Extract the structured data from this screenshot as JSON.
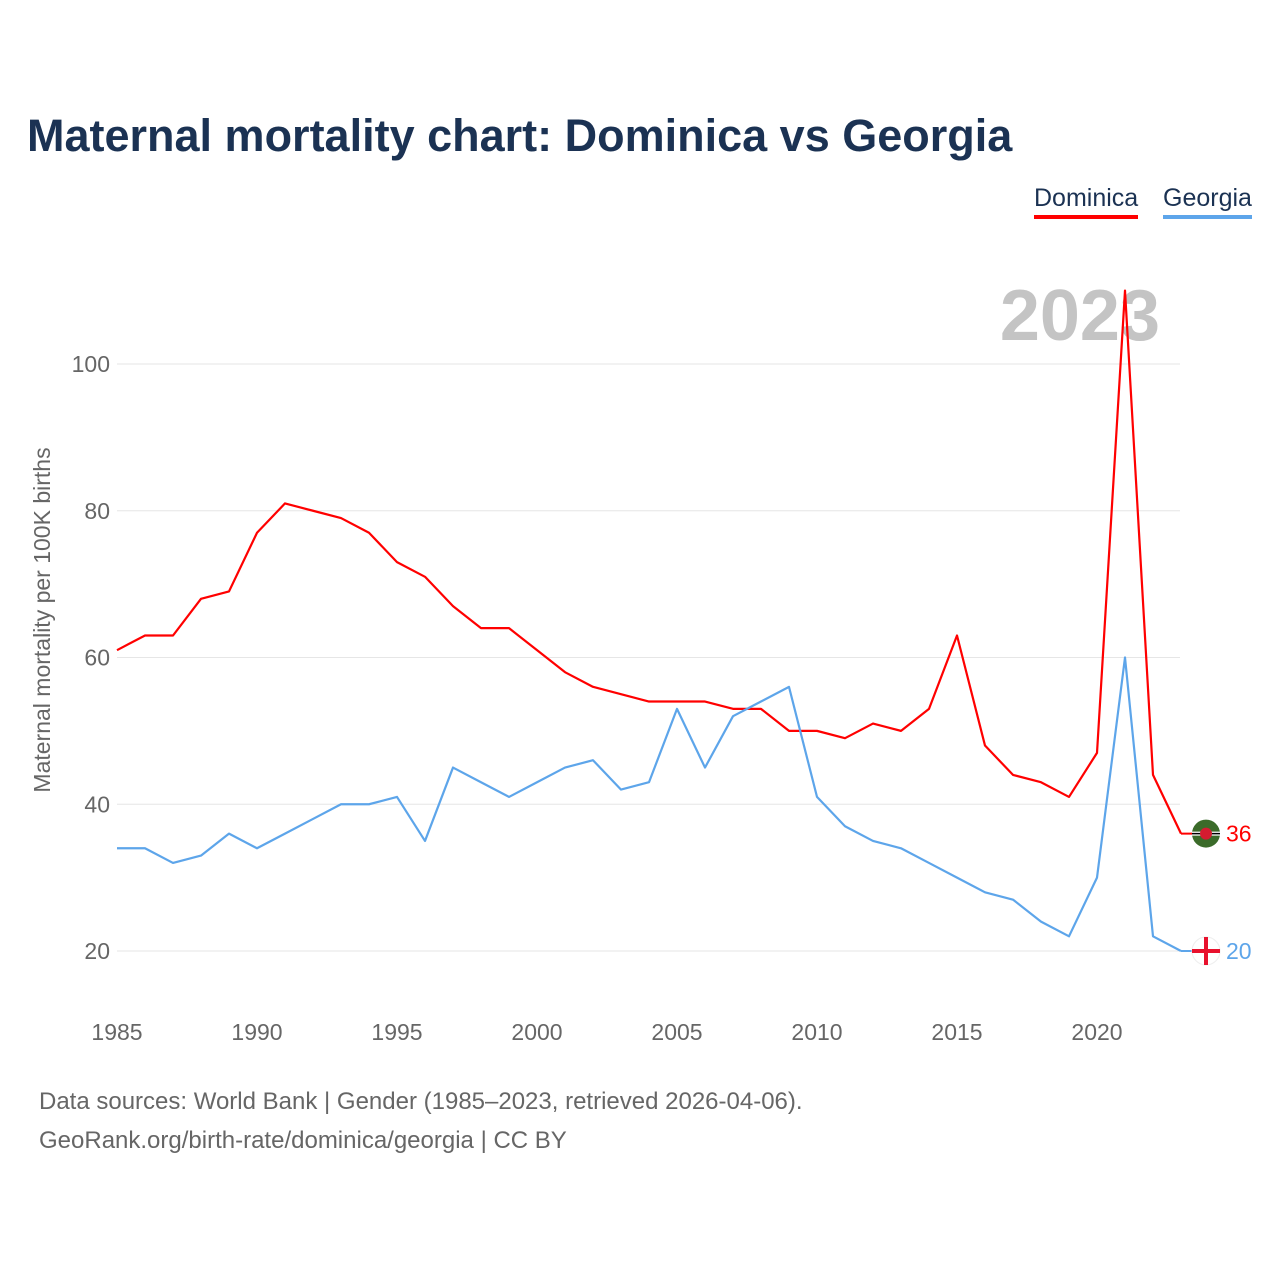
{
  "title": "Maternal mortality chart: Dominica vs Georgia",
  "footer": {
    "line1": "Data sources: World Bank | Gender (1985–2023, retrieved 2026-04-06).",
    "line2": "GeoRank.org/birth-rate/dominica/georgia | CC BY"
  },
  "chart_data": {
    "type": "line",
    "title": "Maternal mortality chart: Dominica vs Georgia",
    "ylabel": "Maternal mortality per 100K births",
    "xlabel": "",
    "year_label": "2023",
    "ylim": [
      10,
      115
    ],
    "xlim": [
      1985,
      2023
    ],
    "yticks": [
      20,
      40,
      60,
      80,
      100
    ],
    "xticks": [
      1985,
      1990,
      1995,
      2000,
      2005,
      2010,
      2015,
      2020
    ],
    "grid": true,
    "legend_placement": "top-right",
    "x": [
      1985,
      1986,
      1987,
      1988,
      1989,
      1990,
      1991,
      1992,
      1993,
      1994,
      1995,
      1996,
      1997,
      1998,
      1999,
      2000,
      2001,
      2002,
      2003,
      2004,
      2005,
      2006,
      2007,
      2008,
      2009,
      2010,
      2011,
      2012,
      2013,
      2014,
      2015,
      2016,
      2017,
      2018,
      2019,
      2020,
      2021,
      2022,
      2023
    ],
    "series": [
      {
        "name": "Dominica",
        "color": "#ff0000",
        "end_label": "36",
        "values": [
          61,
          63,
          63,
          68,
          69,
          77,
          81,
          80,
          79,
          77,
          73,
          71,
          67,
          64,
          64,
          61,
          58,
          56,
          55,
          54,
          54,
          54,
          53,
          53,
          50,
          50,
          49,
          51,
          50,
          53,
          63,
          48,
          44,
          43,
          41,
          47,
          110,
          44,
          36
        ]
      },
      {
        "name": "Georgia",
        "color": "#5da5ea",
        "end_label": "20",
        "values": [
          34,
          34,
          32,
          33,
          36,
          34,
          36,
          38,
          40,
          40,
          41,
          35,
          45,
          43,
          41,
          43,
          45,
          46,
          42,
          43,
          53,
          45,
          52,
          54,
          56,
          41,
          37,
          35,
          34,
          32,
          30,
          28,
          27,
          24,
          22,
          30,
          60,
          22,
          20
        ]
      }
    ]
  }
}
